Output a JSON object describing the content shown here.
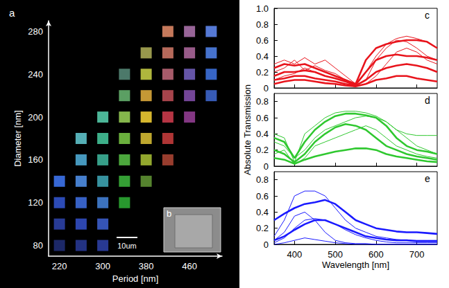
{
  "chart_data": [
    {
      "type": "scatter",
      "title": "a",
      "x_label": "Period [nm]",
      "y_label": "Diameter [nm]",
      "marker": "square",
      "xlim": [
        200,
        520
      ],
      "xticks": [
        220,
        300,
        380,
        460
      ],
      "ylim": [
        70,
        290
      ],
      "yticks": [
        80,
        120,
        160,
        200,
        240,
        280
      ],
      "annotations": [
        "b",
        "10um"
      ],
      "x": [
        220,
        220,
        220,
        220,
        260,
        260,
        260,
        260,
        260,
        260,
        300,
        300,
        300,
        300,
        300,
        300,
        300,
        340,
        340,
        340,
        340,
        340,
        340,
        340,
        380,
        380,
        380,
        380,
        380,
        380,
        380,
        420,
        420,
        420,
        420,
        420,
        420,
        420,
        460,
        460,
        460,
        460,
        460,
        500,
        500,
        500,
        500
      ],
      "y": [
        80,
        100,
        120,
        140,
        80,
        100,
        120,
        140,
        160,
        180,
        80,
        100,
        120,
        140,
        160,
        180,
        200,
        120,
        140,
        160,
        180,
        200,
        220,
        240,
        140,
        160,
        180,
        200,
        220,
        240,
        260,
        160,
        180,
        200,
        220,
        240,
        260,
        280,
        200,
        220,
        240,
        260,
        280,
        220,
        240,
        260,
        280
      ],
      "colors": [
        "#1e2a6e",
        "#2a3e9e",
        "#2e4fc0",
        "#3a6ee0",
        "#25358a",
        "#2f4ab8",
        "#3a66d0",
        "#4a86d8",
        "#4aa0c8",
        "#5ab8c0",
        "#2a3c9a",
        "#3858c0",
        "#3f78c8",
        "#3a9aa8",
        "#3aa890",
        "#40b890",
        "#50c0a0",
        "#2aa030",
        "#38a838",
        "#50b040",
        "#70b840",
        "#8cc050",
        "#60a868",
        "#508070",
        "#5a8a30",
        "#9ab030",
        "#c8b030",
        "#e0c030",
        "#d0a038",
        "#b8c040",
        "#a0a050",
        "#a04030",
        "#b83838",
        "#c03848",
        "#b04850",
        "#b06070",
        "#c07060",
        "#d08060",
        "#8a3a8a",
        "#7a4aa0",
        "#6a5ab0",
        "#a06090",
        "#a06aa0",
        "#3a60c0",
        "#3a6ad0",
        "#4a78d8",
        "#5a80e0"
      ]
    },
    {
      "type": "line",
      "title": "c",
      "tick_labels": "y",
      "xlim": [
        350,
        750
      ],
      "xticks": [
        400,
        500,
        600,
        700
      ],
      "ylim": [
        0,
        1
      ],
      "yticks": [
        0,
        0.2,
        0.4,
        0.6,
        0.8,
        {
          "value": 1,
          "label": "1.0"
        }
      ],
      "x": [
        350,
        375,
        400,
        425,
        450,
        475,
        500,
        525,
        550,
        575,
        600,
        625,
        650,
        675,
        700,
        725,
        750
      ],
      "series": [
        {
          "color": "#e8141c",
          "line_style": "thick",
          "values": [
            0.25,
            0.3,
            0.28,
            0.3,
            0.25,
            0.2,
            0.15,
            0.1,
            0.05,
            0.35,
            0.5,
            0.55,
            0.58,
            0.6,
            0.6,
            0.58,
            0.5
          ]
        },
        {
          "color": "#e8141c",
          "line_style": "thick",
          "values": [
            0.15,
            0.2,
            0.2,
            0.22,
            0.2,
            0.15,
            0.12,
            0.08,
            0.04,
            0.2,
            0.35,
            0.4,
            0.42,
            0.4,
            0.4,
            0.38,
            0.35
          ]
        },
        {
          "color": "#e8141c",
          "line_style": "thick",
          "values": [
            0.1,
            0.12,
            0.15,
            0.15,
            0.12,
            0.1,
            0.08,
            0.05,
            0.03,
            0.1,
            0.2,
            0.25,
            0.28,
            0.3,
            0.28,
            0.25,
            0.2
          ]
        },
        {
          "color": "#e8141c",
          "line_style": "thick",
          "values": [
            0.05,
            0.08,
            0.1,
            0.1,
            0.08,
            0.06,
            0.05,
            0.03,
            0.02,
            0.05,
            0.1,
            0.12,
            0.15,
            0.15,
            0.12,
            0.1,
            0.08
          ]
        },
        {
          "color": "#e8141c",
          "line_style": "thin",
          "values": [
            0.3,
            0.35,
            0.3,
            0.38,
            0.3,
            0.35,
            0.25,
            0.15,
            0.05,
            0.2,
            0.4,
            0.55,
            0.62,
            0.65,
            0.62,
            0.58,
            0.5
          ]
        },
        {
          "color": "#e8141c",
          "line_style": "thin",
          "values": [
            0.2,
            0.25,
            0.35,
            0.22,
            0.28,
            0.22,
            0.18,
            0.1,
            0.03,
            0.1,
            0.35,
            0.5,
            0.6,
            0.58,
            0.5,
            0.4,
            0.35
          ]
        },
        {
          "color": "#e8141c",
          "line_style": "thin",
          "values": [
            0.1,
            0.15,
            0.18,
            0.25,
            0.2,
            0.15,
            0.12,
            0.08,
            0.02,
            0.05,
            0.15,
            0.3,
            0.45,
            0.5,
            0.45,
            0.35,
            0.3
          ]
        }
      ]
    },
    {
      "type": "line",
      "title": "d",
      "tick_labels": "y",
      "y_label": "Absolute Transmission",
      "xlim": [
        350,
        750
      ],
      "xticks": [
        400,
        500,
        600,
        700
      ],
      "ylim": [
        0,
        0.9
      ],
      "yticks": [
        0,
        0.2,
        0.4,
        0.6,
        0.8
      ],
      "x": [
        350,
        375,
        400,
        425,
        450,
        475,
        500,
        525,
        550,
        575,
        600,
        625,
        650,
        675,
        700,
        725,
        750
      ],
      "series": [
        {
          "color": "#2fc82f",
          "line_style": "thick",
          "values": [
            0.35,
            0.3,
            0.1,
            0.3,
            0.45,
            0.55,
            0.62,
            0.65,
            0.65,
            0.63,
            0.6,
            0.5,
            0.35,
            0.25,
            0.2,
            0.18,
            0.15
          ]
        },
        {
          "color": "#2fc82f",
          "line_style": "thick",
          "values": [
            0.2,
            0.15,
            0.05,
            0.15,
            0.3,
            0.4,
            0.48,
            0.52,
            0.5,
            0.45,
            0.35,
            0.25,
            0.2,
            0.15,
            0.12,
            0.1,
            0.08
          ]
        },
        {
          "color": "#2fc82f",
          "line_style": "thick",
          "values": [
            0.1,
            0.08,
            0.03,
            0.08,
            0.12,
            0.15,
            0.18,
            0.2,
            0.22,
            0.22,
            0.2,
            0.15,
            0.12,
            0.1,
            0.08,
            0.06,
            0.05
          ]
        },
        {
          "color": "#2fc82f",
          "line_style": "thin",
          "values": [
            0.4,
            0.35,
            0.05,
            0.4,
            0.5,
            0.6,
            0.66,
            0.68,
            0.68,
            0.66,
            0.62,
            0.55,
            0.45,
            0.4,
            0.38,
            0.38,
            0.38
          ]
        },
        {
          "color": "#2fc82f",
          "line_style": "thin",
          "values": [
            0.3,
            0.25,
            0.1,
            0.2,
            0.35,
            0.45,
            0.5,
            0.55,
            0.6,
            0.62,
            0.6,
            0.55,
            0.45,
            0.35,
            0.25,
            0.2,
            0.15
          ]
        },
        {
          "color": "#2fc82f",
          "line_style": "thin",
          "values": [
            0.15,
            0.2,
            0.02,
            0.1,
            0.25,
            0.3,
            0.35,
            0.4,
            0.45,
            0.5,
            0.45,
            0.35,
            0.25,
            0.2,
            0.15,
            0.12,
            0.1
          ]
        }
      ]
    },
    {
      "type": "line",
      "title": "e",
      "x_label": "Wavelength [nm]",
      "xlim": [
        350,
        750
      ],
      "xticks": [
        400,
        500,
        600,
        700
      ],
      "ylim": [
        0,
        0.9
      ],
      "yticks": [
        0,
        0.2,
        0.4,
        0.6,
        0.8
      ],
      "x": [
        350,
        375,
        400,
        425,
        450,
        475,
        500,
        525,
        550,
        575,
        600,
        625,
        650,
        675,
        700,
        725,
        750
      ],
      "series": [
        {
          "color": "#1a1aff",
          "line_style": "thick",
          "values": [
            0.3,
            0.38,
            0.45,
            0.5,
            0.52,
            0.55,
            0.5,
            0.4,
            0.3,
            0.25,
            0.2,
            0.18,
            0.16,
            0.15,
            0.15,
            0.14,
            0.13
          ]
        },
        {
          "color": "#1a1aff",
          "line_style": "thick",
          "values": [
            0.05,
            0.1,
            0.18,
            0.25,
            0.3,
            0.3,
            0.25,
            0.2,
            0.15,
            0.1,
            0.08,
            0.06,
            0.05,
            0.05,
            0.04,
            0.04,
            0.04
          ]
        },
        {
          "color": "#1a1aff",
          "line_style": "thin",
          "values": [
            0.1,
            0.3,
            0.6,
            0.66,
            0.66,
            0.6,
            0.45,
            0.3,
            0.2,
            0.15,
            0.1,
            0.08,
            0.06,
            0.05,
            0.05,
            0.05,
            0.05
          ]
        },
        {
          "color": "#1a1aff",
          "line_style": "thin",
          "values": [
            0.05,
            0.15,
            0.35,
            0.4,
            0.3,
            0.15,
            0.05,
            0.02,
            0.01,
            0.01,
            0,
            0,
            0,
            0,
            0,
            0,
            0
          ]
        },
        {
          "color": "#1a1aff",
          "line_style": "thin",
          "values": [
            0.02,
            0.08,
            0.2,
            0.3,
            0.32,
            0.3,
            0.25,
            0.18,
            0.12,
            0.08,
            0.05,
            0.03,
            0.02,
            0.02,
            0.02,
            0.02,
            0.02
          ]
        },
        {
          "color": "#1a1aff",
          "line_style": "thin",
          "values": [
            0,
            0.02,
            0.05,
            0.08,
            0.06,
            0.04,
            0.02,
            0.01,
            0,
            0,
            0,
            0,
            0,
            0,
            0,
            0,
            0
          ]
        }
      ]
    }
  ]
}
